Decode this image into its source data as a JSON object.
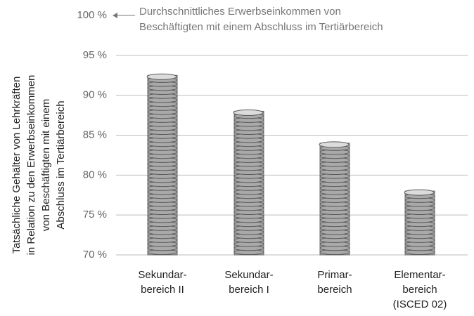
{
  "chart_data": {
    "type": "bar",
    "y_label": "Tatsächliche Gehälter von Lehrkräften\nin Relation zu den Erwerbseinkommen\nvon Beschäftigten mit einem\nAbschluss im Tertiärbereich",
    "annotation": "Durchschnittliches Erwerbseinkommen von\nBeschäftigten mit einem Abschluss im Tertiärbereich",
    "categories": [
      "Sekundar-\nbereich II",
      "Sekundar-\nbereich I",
      "Primar-\nbereich",
      "Elementar-\nbereich\n(ISCED 02)"
    ],
    "values": [
      92.5,
      88,
      84,
      78
    ],
    "color": "#a9a9a9",
    "ylim": [
      70,
      100
    ],
    "yticks": [
      {
        "value": 70,
        "label": "70 %"
      },
      {
        "value": 75,
        "label": "75 %"
      },
      {
        "value": 80,
        "label": "80 %"
      },
      {
        "value": 85,
        "label": "85 %"
      },
      {
        "value": 90,
        "label": "90 %"
      },
      {
        "value": 95,
        "label": "95 %"
      },
      {
        "value": 100,
        "label": "100 %"
      }
    ],
    "grid": true
  }
}
